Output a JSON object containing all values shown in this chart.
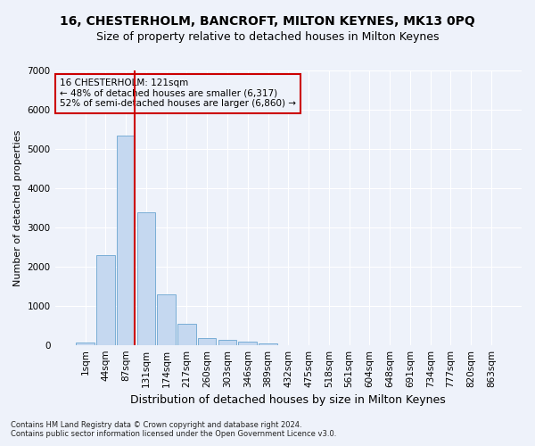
{
  "title": "16, CHESTERHOLM, BANCROFT, MILTON KEYNES, MK13 0PQ",
  "subtitle": "Size of property relative to detached houses in Milton Keynes",
  "xlabel": "Distribution of detached houses by size in Milton Keynes",
  "ylabel": "Number of detached properties",
  "footnote1": "Contains HM Land Registry data © Crown copyright and database right 2024.",
  "footnote2": "Contains public sector information licensed under the Open Government Licence v3.0.",
  "bar_labels": [
    "1sqm",
    "44sqm",
    "87sqm",
    "131sqm",
    "174sqm",
    "217sqm",
    "260sqm",
    "303sqm",
    "346sqm",
    "389sqm",
    "432sqm",
    "475sqm",
    "518sqm",
    "561sqm",
    "604sqm",
    "648sqm",
    "691sqm",
    "734sqm",
    "777sqm",
    "820sqm",
    "863sqm"
  ],
  "bar_values": [
    70,
    2280,
    5350,
    3380,
    1300,
    530,
    175,
    120,
    90,
    30,
    0,
    0,
    0,
    0,
    0,
    0,
    0,
    0,
    0,
    0,
    0
  ],
  "bar_color": "#c5d8f0",
  "bar_edge_color": "#7aaed6",
  "ylim": [
    0,
    7000
  ],
  "yticks": [
    0,
    1000,
    2000,
    3000,
    4000,
    5000,
    6000,
    7000
  ],
  "vline_x_index": 2.45,
  "vline_color": "#cc0000",
  "annotation_text": "16 CHESTERHOLM: 121sqm\n← 48% of detached houses are smaller (6,317)\n52% of semi-detached houses are larger (6,860) →",
  "annotation_box_color": "#cc0000",
  "background_color": "#eef2fa",
  "grid_color": "#ffffff",
  "title_fontsize": 10,
  "subtitle_fontsize": 9,
  "tick_fontsize": 7.5,
  "ylabel_fontsize": 8,
  "xlabel_fontsize": 9,
  "annot_fontsize": 7.5
}
